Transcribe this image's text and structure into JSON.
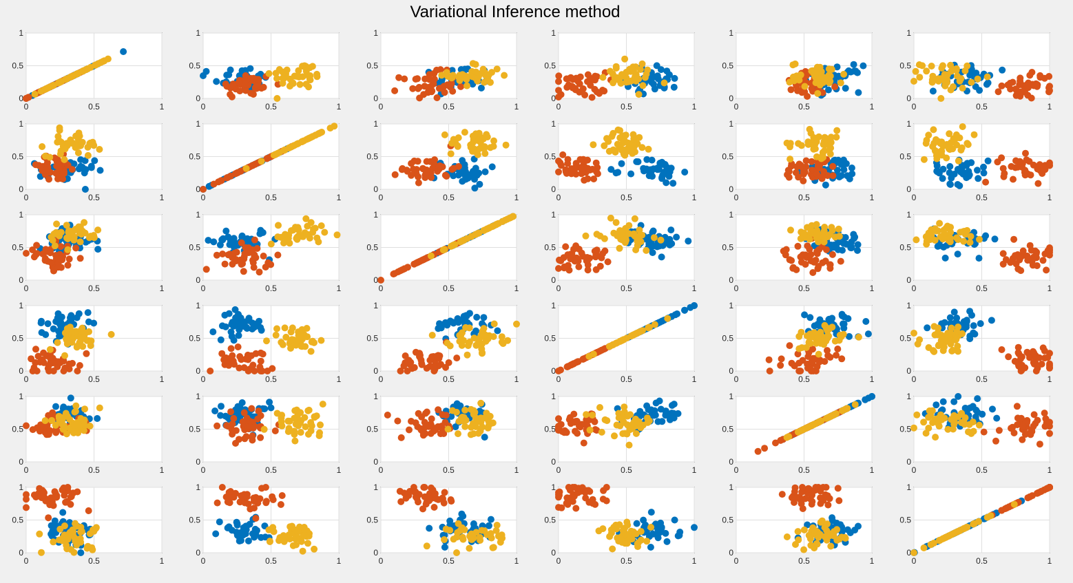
{
  "chart_data": {
    "type": "scatter",
    "title": "Variational Inference method",
    "layout": {
      "rows": 6,
      "cols": 6
    },
    "xlim": [
      0,
      1
    ],
    "ylim": [
      0,
      1
    ],
    "xticks": [
      0,
      0.5,
      1
    ],
    "yticks": [
      0,
      0.5,
      1
    ],
    "xtick_labels": [
      "0",
      "0.5",
      "1"
    ],
    "ytick_labels": [
      "0",
      "0.5",
      "1"
    ],
    "grid": true,
    "marker": "filled-circle",
    "colors": [
      "#0072BD",
      "#D95319",
      "#EDB120"
    ],
    "clusters": [
      {
        "color": "#0072BD",
        "center": [
          0.3,
          0.28,
          0.6,
          0.7,
          0.72,
          0.35
        ]
      },
      {
        "color": "#D95319",
        "center": [
          0.2,
          0.32,
          0.35,
          0.15,
          0.55,
          0.85
        ]
      },
      {
        "color": "#EDB120",
        "center": [
          0.35,
          0.7,
          0.7,
          0.5,
          0.6,
          0.25
        ]
      }
    ],
    "points_per_cluster": 40,
    "spread": 0.1
  }
}
